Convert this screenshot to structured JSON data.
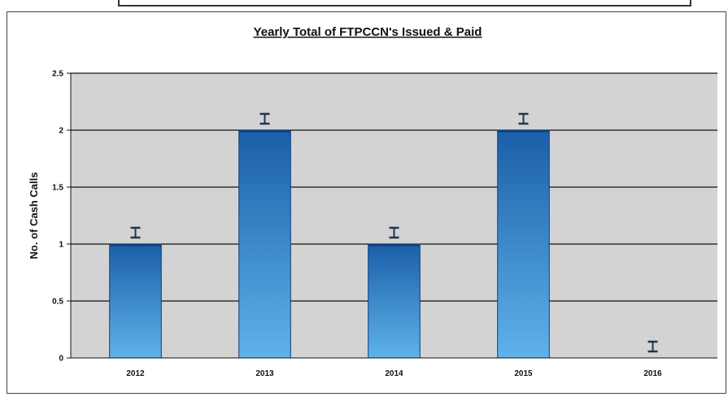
{
  "chart_data": {
    "type": "bar",
    "title": "Yearly Total of FTPCCN's Issued & Paid",
    "xlabel": "",
    "ylabel": "No. of Cash Calls",
    "categories": [
      "2012",
      "2013",
      "2014",
      "2015",
      "2016"
    ],
    "values": [
      1,
      2,
      1,
      2,
      0
    ],
    "ylim": [
      0,
      2.5
    ],
    "yticks": [
      "0",
      "0.5",
      "1",
      "1.5",
      "2",
      "2.5"
    ],
    "grid": true,
    "legend": "none",
    "error_bars": true,
    "colors": {
      "bar_top": "#1a5fa8",
      "bar_bottom": "#5fb2ea",
      "plot_bg": "#d3d3d3",
      "gridline": "#111111"
    }
  }
}
